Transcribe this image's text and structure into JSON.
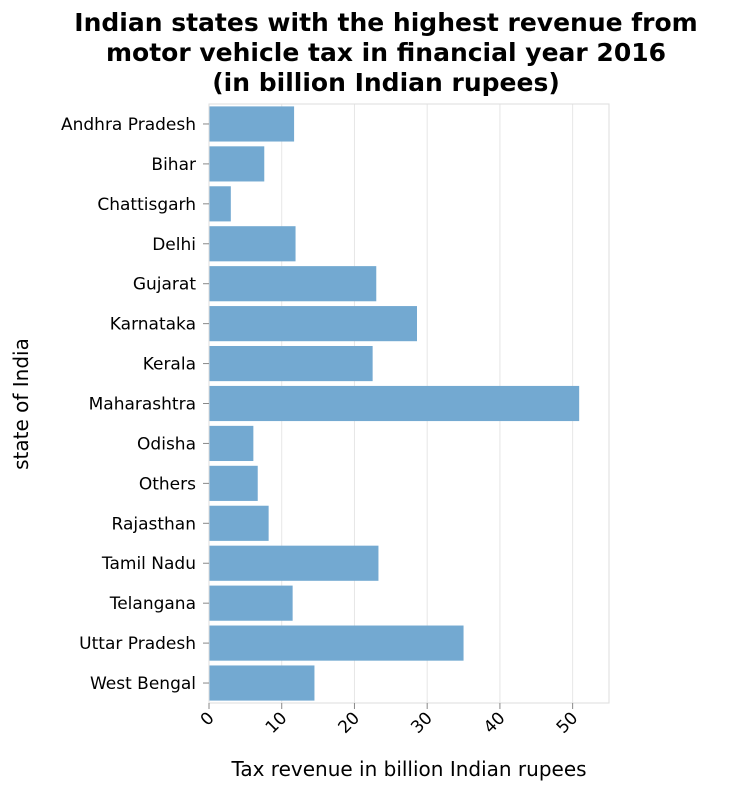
{
  "chart_data": {
    "type": "bar",
    "orientation": "horizontal",
    "title_lines": [
      "Indian states with the highest revenue from",
      "motor vehicle tax in financial year 2016",
      "(in billion Indian rupees)"
    ],
    "xlabel": "Tax revenue in billion Indian rupees",
    "ylabel": "state of India",
    "xlim": [
      0,
      55
    ],
    "xticks": [
      0,
      10,
      20,
      30,
      40,
      50
    ],
    "grid": true,
    "legend": "none",
    "bar_color": "#73a9d1",
    "categories": [
      "Andhra Pradesh",
      "Bihar",
      "Chattisgarh",
      "Delhi",
      "Gujarat",
      "Karnataka",
      "Kerala",
      "Maharashtra",
      "Odisha",
      "Others",
      "Rajasthan",
      "Tamil Nadu",
      "Telangana",
      "Uttar Pradesh",
      "West Bengal"
    ],
    "values": [
      11.7,
      7.6,
      3.0,
      11.9,
      23.0,
      28.6,
      22.5,
      50.9,
      6.1,
      6.7,
      8.2,
      23.3,
      11.5,
      35.0,
      14.5
    ]
  }
}
